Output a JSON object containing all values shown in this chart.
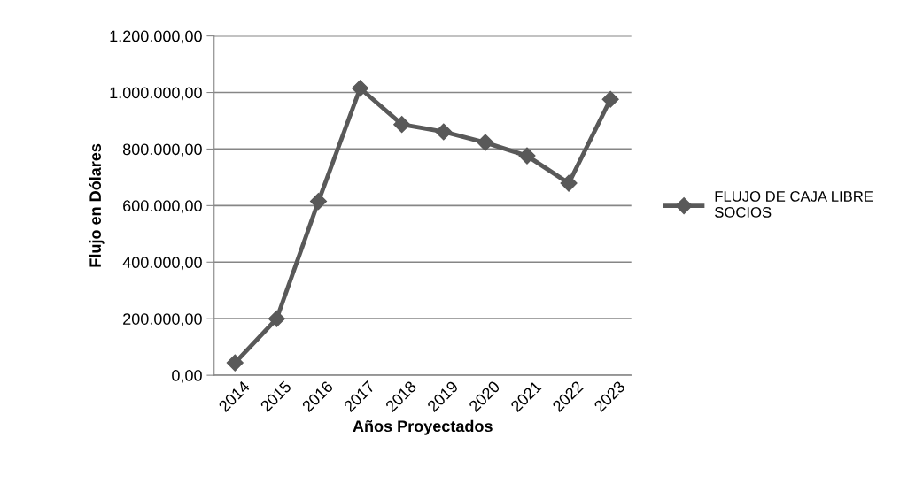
{
  "chart_data": {
    "type": "line",
    "xlabel": "Años Proyectados",
    "ylabel": "Flujo en Dólares",
    "categories": [
      "2014",
      "2015",
      "2016",
      "2017",
      "2018",
      "2019",
      "2020",
      "2021",
      "2022",
      "2023"
    ],
    "series": [
      {
        "name": "FLUJO DE CAJA LIBRE SOCIOS",
        "color": "#595959",
        "values": [
          44000,
          200000,
          615000,
          1015000,
          887000,
          861000,
          823000,
          776000,
          679000,
          976000
        ]
      }
    ],
    "ylim": [
      0,
      1200000
    ],
    "yticks": [
      {
        "value": 0,
        "label": "0,00"
      },
      {
        "value": 200000,
        "label": "200.000,00"
      },
      {
        "value": 400000,
        "label": "400.000,00"
      },
      {
        "value": 600000,
        "label": "600.000,00"
      },
      {
        "value": 800000,
        "label": "800.000,00"
      },
      {
        "value": 1000000,
        "label": "1.000.000,00"
      },
      {
        "value": 1200000,
        "label": "1.200.000,00"
      }
    ],
    "grid": "y",
    "legend": "right",
    "marker": "diamond",
    "line_style": "solid"
  }
}
